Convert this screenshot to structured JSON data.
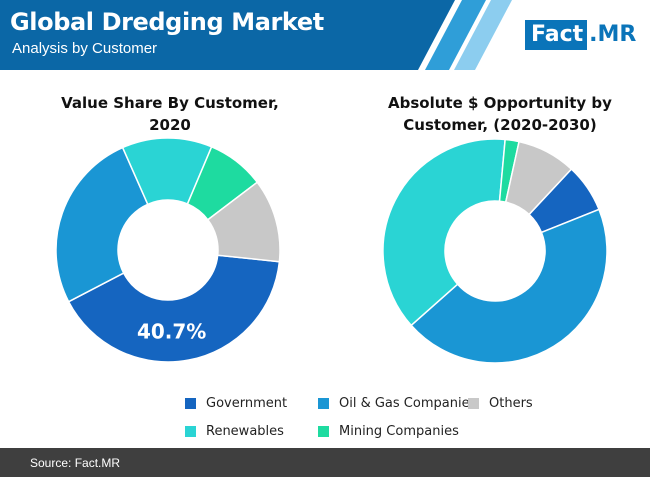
{
  "header": {
    "title": "Global Dredging Market",
    "subtitle": "Analysis by Customer",
    "logo_left": "Fact",
    "logo_right": ".MR",
    "colors": {
      "bar": "#0b67a6",
      "stripe1": "#2f9ed8",
      "stripe2": "#8ccdef",
      "logo": "#0a74b9"
    }
  },
  "chart_data": [
    {
      "type": "pie",
      "title": "Value Share By Customer, 2020",
      "donut": true,
      "categories": [
        "Government",
        "Oil & Gas Companies",
        "Renewables",
        "Mining Companies",
        "Others"
      ],
      "values": [
        40.7,
        26.0,
        13.0,
        8.3,
        12.0
      ],
      "colors": [
        "#1565c0",
        "#1a96d4",
        "#2ad4d4",
        "#1edba0",
        "#c8c8c8"
      ],
      "data_labels": [
        {
          "category": "Government",
          "text": "40.7%"
        }
      ]
    },
    {
      "type": "pie",
      "title": "Absolute $ Opportunity by Customer, (2020-2030)",
      "donut": true,
      "categories": [
        "Government",
        "Oil & Gas Companies",
        "Renewables",
        "Mining Companies",
        "Others"
      ],
      "values": [
        7.0,
        44.5,
        38.0,
        2.0,
        8.5
      ],
      "colors": [
        "#1565c0",
        "#1a96d4",
        "#2ad4d4",
        "#1edba0",
        "#c8c8c8"
      ]
    }
  ],
  "legend": {
    "items": [
      {
        "label": "Government",
        "color": "#1565c0"
      },
      {
        "label": "Oil & Gas Companies",
        "color": "#1a96d4"
      },
      {
        "label": "Others",
        "color": "#c8c8c8"
      },
      {
        "label": "Renewables",
        "color": "#2ad4d4"
      },
      {
        "label": "Mining Companies",
        "color": "#1edba0"
      }
    ]
  },
  "footer": {
    "source": "Source: Fact.MR"
  }
}
